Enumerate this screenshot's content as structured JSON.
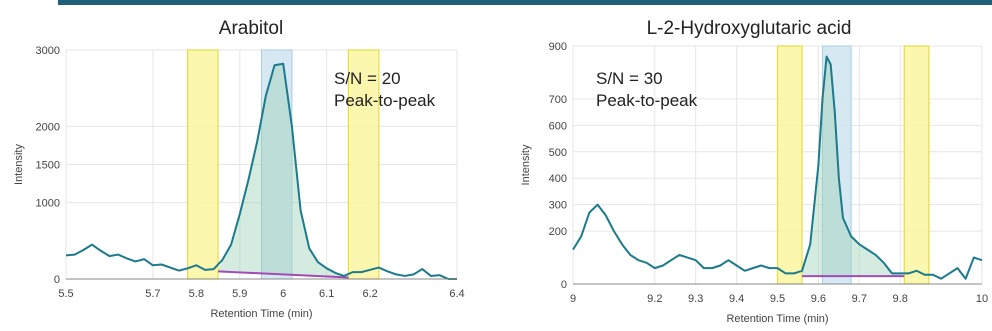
{
  "chart_data": [
    {
      "type": "line",
      "title": "Arabitol",
      "xlabel": "Retention Time (min)",
      "ylabel": "Intensity",
      "xlim": [
        5.5,
        6.4
      ],
      "ylim": [
        0,
        3000
      ],
      "x_ticks": [
        5.5,
        5.7,
        5.8,
        5.9,
        6,
        6.1,
        6.2,
        6.4
      ],
      "x_tick_labels": [
        "5.5",
        "5.7",
        "5.8",
        "5.9",
        "6",
        "6.1",
        "6.2",
        "6.4"
      ],
      "y_ticks": [
        0,
        1000,
        1500,
        2000,
        3000
      ],
      "y_tick_labels": [
        "0",
        "1000",
        "1500",
        "2000",
        "3000"
      ],
      "annotation": [
        "S/N = 20",
        "Peak-to-peak"
      ],
      "noise_regions": [
        [
          5.78,
          5.85
        ],
        [
          6.15,
          6.22
        ]
      ],
      "peak_region": [
        5.95,
        6.02
      ],
      "baseline": {
        "x": [
          5.85,
          6.15
        ],
        "y": [
          100,
          20
        ]
      },
      "series": [
        {
          "color": "#1b7a8c",
          "x": [
            5.5,
            5.52,
            5.54,
            5.56,
            5.58,
            5.6,
            5.62,
            5.64,
            5.66,
            5.68,
            5.7,
            5.72,
            5.74,
            5.76,
            5.78,
            5.8,
            5.82,
            5.84,
            5.86,
            5.88,
            5.9,
            5.92,
            5.94,
            5.96,
            5.98,
            6.0,
            6.02,
            6.04,
            6.06,
            6.08,
            6.1,
            6.12,
            6.14,
            6.16,
            6.18,
            6.2,
            6.22,
            6.24,
            6.26,
            6.28,
            6.3,
            6.32,
            6.34,
            6.36,
            6.38,
            6.4
          ],
          "y": [
            310,
            320,
            380,
            450,
            370,
            300,
            320,
            270,
            230,
            260,
            180,
            190,
            150,
            110,
            140,
            180,
            120,
            130,
            250,
            450,
            850,
            1300,
            1800,
            2400,
            2800,
            2820,
            2000,
            900,
            400,
            220,
            140,
            80,
            40,
            90,
            90,
            120,
            150,
            100,
            60,
            40,
            60,
            130,
            40,
            50,
            0,
            0
          ]
        }
      ]
    },
    {
      "type": "line",
      "title": "L-2-Hydroxyglutaric acid",
      "xlabel": "Retention Time (min)",
      "ylabel": "Intensity",
      "xlim": [
        9,
        10
      ],
      "ylim": [
        0,
        900
      ],
      "x_ticks": [
        9,
        9.2,
        9.3,
        9.4,
        9.5,
        9.6,
        9.7,
        9.8,
        10
      ],
      "x_tick_labels": [
        "9",
        "9.2",
        "9.3",
        "9.4",
        "9.5",
        "9.6",
        "9.7",
        "9.8",
        "10"
      ],
      "y_ticks": [
        0,
        200,
        300,
        400,
        500,
        600,
        700,
        900
      ],
      "y_tick_labels": [
        "0",
        "200",
        "300",
        "400",
        "500",
        "600",
        "700",
        "900"
      ],
      "annotation": [
        "S/N = 30",
        "Peak-to-peak"
      ],
      "noise_regions": [
        [
          9.5,
          9.56
        ],
        [
          9.81,
          9.87
        ]
      ],
      "peak_region": [
        9.61,
        9.68
      ],
      "baseline": {
        "x": [
          9.56,
          9.81
        ],
        "y": [
          30,
          30
        ]
      },
      "series": [
        {
          "color": "#1b7a8c",
          "x": [
            9.0,
            9.02,
            9.04,
            9.06,
            9.08,
            9.1,
            9.12,
            9.14,
            9.16,
            9.18,
            9.2,
            9.22,
            9.24,
            9.26,
            9.28,
            9.3,
            9.32,
            9.34,
            9.36,
            9.38,
            9.4,
            9.42,
            9.44,
            9.46,
            9.48,
            9.5,
            9.52,
            9.54,
            9.56,
            9.58,
            9.6,
            9.61,
            9.62,
            9.63,
            9.64,
            9.65,
            9.66,
            9.68,
            9.7,
            9.72,
            9.74,
            9.76,
            9.78,
            9.8,
            9.82,
            9.84,
            9.86,
            9.88,
            9.9,
            9.92,
            9.94,
            9.96,
            9.98,
            10.0
          ],
          "y": [
            130,
            180,
            270,
            300,
            260,
            200,
            150,
            110,
            90,
            80,
            60,
            70,
            90,
            110,
            100,
            90,
            60,
            60,
            70,
            90,
            70,
            50,
            60,
            70,
            60,
            60,
            40,
            40,
            50,
            150,
            450,
            700,
            860,
            830,
            650,
            400,
            250,
            180,
            150,
            130,
            110,
            80,
            40,
            40,
            40,
            50,
            35,
            35,
            20,
            40,
            60,
            20,
            100,
            90
          ]
        }
      ]
    }
  ]
}
